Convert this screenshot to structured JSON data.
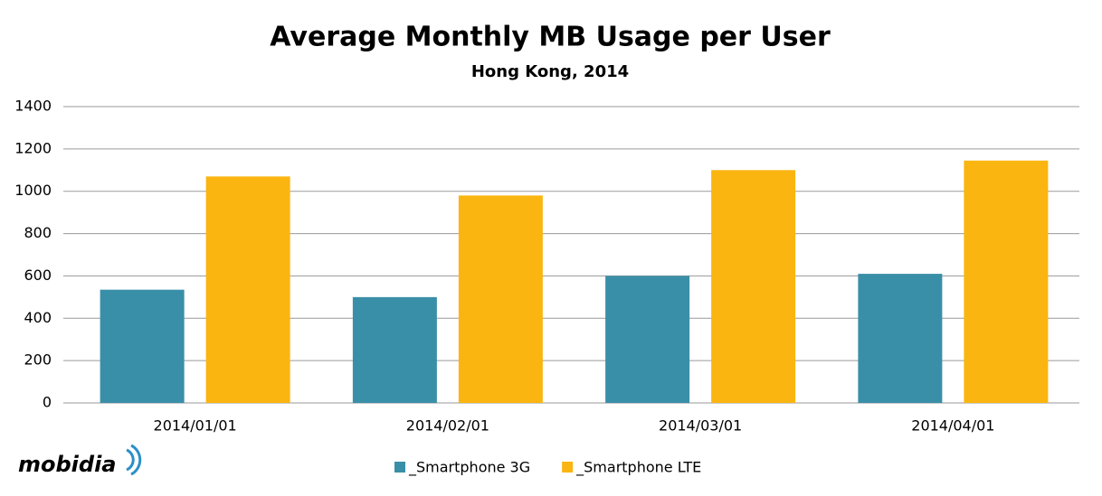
{
  "chart_data": {
    "type": "bar",
    "title": "Average Monthly MB Usage per User",
    "subtitle": "Hong Kong, 2014",
    "categories": [
      "2014/01/01",
      "2014/02/01",
      "2014/03/01",
      "2014/04/01"
    ],
    "series": [
      {
        "name": "_Smartphone 3G",
        "color": "#3a8fa8",
        "values": [
          535,
          500,
          600,
          610
        ]
      },
      {
        "name": "_Smartphone LTE",
        "color": "#fbb511",
        "values": [
          1070,
          980,
          1100,
          1145
        ]
      }
    ],
    "ylim": [
      0,
      1400
    ],
    "yticks": [
      0,
      200,
      400,
      600,
      800,
      1000,
      1200,
      1400
    ],
    "grid": true,
    "legend": "bottom",
    "logo": "mobidia"
  }
}
